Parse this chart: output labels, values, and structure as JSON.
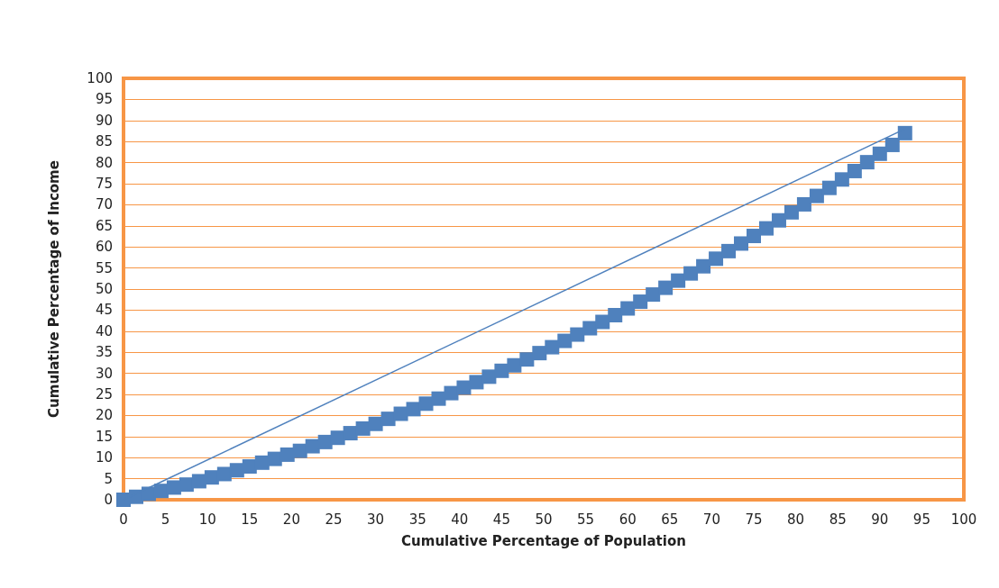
{
  "chart_data": {
    "type": "scatter",
    "xlabel": "Cumulative Percentage of Population",
    "ylabel": "Cumulative Percentage of Income",
    "xlim": [
      0,
      100
    ],
    "ylim": [
      0,
      100
    ],
    "xticks": [
      0,
      5,
      10,
      15,
      20,
      25,
      30,
      35,
      40,
      45,
      50,
      55,
      60,
      65,
      70,
      75,
      80,
      85,
      90,
      95,
      100
    ],
    "yticks": [
      0,
      5,
      10,
      15,
      20,
      25,
      30,
      35,
      40,
      45,
      50,
      55,
      60,
      65,
      70,
      75,
      80,
      85,
      90,
      95,
      100
    ],
    "grid": "y",
    "marker": "square",
    "series": [
      {
        "color": "#4f81bd",
        "x": [
          0,
          1.5,
          3,
          4.5,
          6,
          7.5,
          9,
          10.5,
          12,
          13.5,
          15,
          16.5,
          18,
          19.5,
          21,
          22.5,
          24,
          25.5,
          27,
          28.5,
          30,
          31.5,
          33,
          34.5,
          36,
          37.5,
          39,
          40.5,
          42,
          43.5,
          45,
          46.5,
          48,
          49.5,
          51,
          52.5,
          54,
          55.5,
          57,
          58.5,
          60,
          61.5,
          63,
          64.5,
          66,
          67.5,
          69,
          70.5,
          72,
          73.5,
          75,
          76.5,
          78,
          79.5,
          81,
          82.5,
          84,
          85.5,
          87,
          88.5,
          90,
          91.5,
          93
        ],
        "values": [
          0,
          0.7,
          1.4,
          2.1,
          2.9,
          3.6,
          4.4,
          5.3,
          6.1,
          7.0,
          7.9,
          8.8,
          9.7,
          10.7,
          11.6,
          12.7,
          13.7,
          14.7,
          15.8,
          16.9,
          18.0,
          19.2,
          20.4,
          21.5,
          22.8,
          24.0,
          25.3,
          26.6,
          27.9,
          29.2,
          30.6,
          31.9,
          33.3,
          34.8,
          36.2,
          37.7,
          39.2,
          40.7,
          42.2,
          43.8,
          45.4,
          47.0,
          48.7,
          50.3,
          52.0,
          53.7,
          55.4,
          57.2,
          59.0,
          60.8,
          62.6,
          64.4,
          66.3,
          68.2,
          70.1,
          72.1,
          74.0,
          76.0,
          78.0,
          80.1,
          82.1,
          84.2,
          87
        ]
      },
      {
        "type": "line",
        "color": "#4f81bd",
        "marker": "none",
        "x": [
          0,
          93
        ],
        "values": [
          0,
          88
        ]
      }
    ]
  }
}
